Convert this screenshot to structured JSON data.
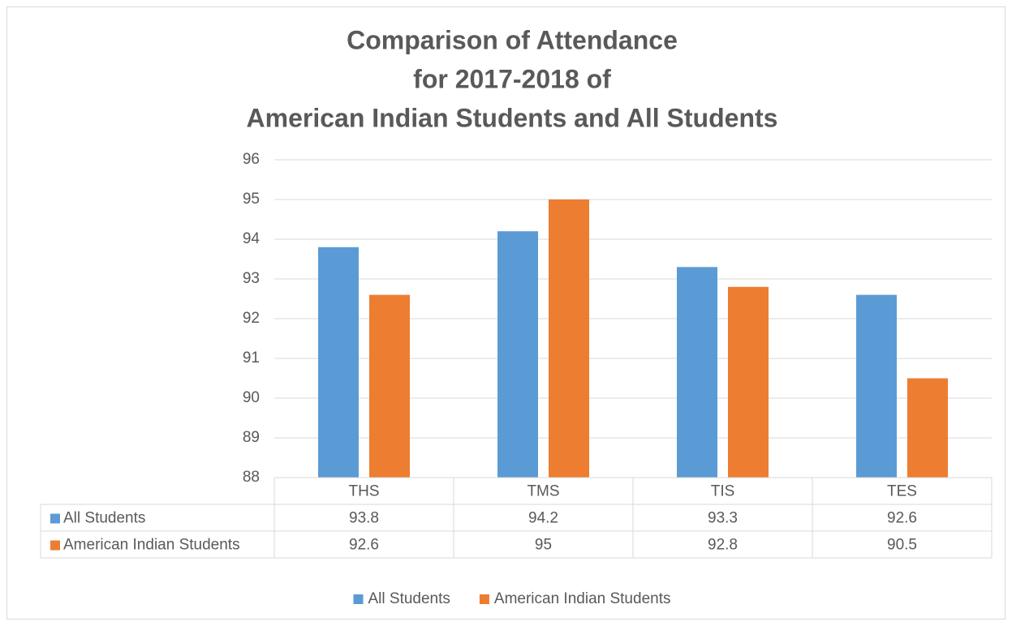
{
  "chart_data": {
    "type": "bar",
    "title": [
      "Comparison of Attendance",
      "for 2017-2018 of",
      "American Indian Students and All Students"
    ],
    "categories": [
      "THS",
      "TMS",
      "TIS",
      "TES"
    ],
    "series": [
      {
        "name": "All Students",
        "color": "#5b9bd5",
        "values": [
          93.8,
          94.2,
          93.3,
          92.6
        ]
      },
      {
        "name": "American Indian Students",
        "color": "#ed7d31",
        "values": [
          92.6,
          95,
          92.8,
          90.5
        ]
      }
    ],
    "ylim": [
      88,
      96
    ],
    "yticks": [
      88,
      89,
      90,
      91,
      92,
      93,
      94,
      95,
      96
    ],
    "grid": true,
    "legend": "bottom",
    "data_table": true
  }
}
